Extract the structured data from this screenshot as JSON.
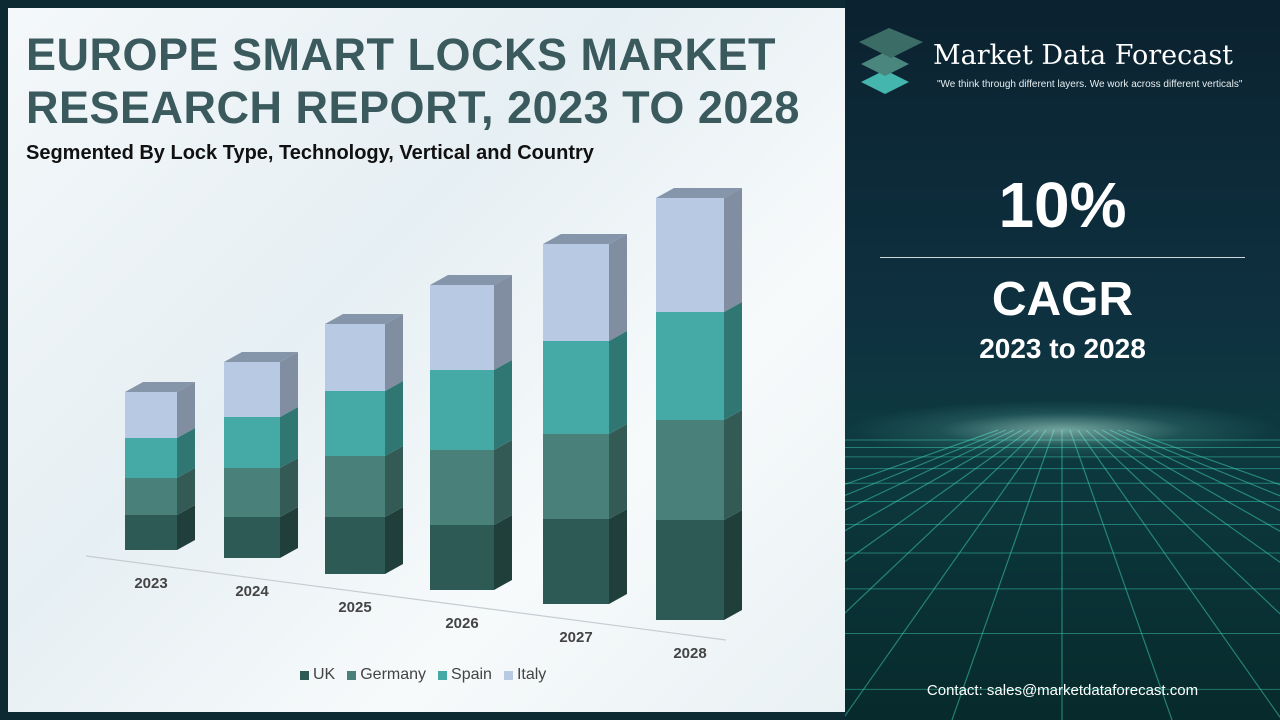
{
  "header": {
    "title_line1": "EUROPE SMART LOCKS MARKET",
    "title_line2": "RESEARCH REPORT, 2023 TO 2028",
    "subtitle": "Segmented By Lock Type, Technology, Vertical and Country"
  },
  "brand": {
    "name": "Market Data Forecast",
    "tagline": "\"We think through different layers. We work across different verticals\""
  },
  "stats": {
    "value": "10%",
    "label": "CAGR",
    "period": "2023 to 2028"
  },
  "contact": "Contact: sales@marketdataforecast.com",
  "colors": {
    "UK": "#2e5a55",
    "Germany": "#4a807a",
    "Spain": "#45aaa6",
    "Italy": "#b8c9e4",
    "panel": "#0e2b36"
  },
  "chart_data": {
    "type": "bar",
    "stacked": true,
    "style": "3d",
    "categories": [
      "2023",
      "2024",
      "2025",
      "2026",
      "2027",
      "2028"
    ],
    "series": [
      {
        "name": "UK",
        "values": [
          35,
          41,
          57,
          65,
          85,
          100
        ]
      },
      {
        "name": "Germany",
        "values": [
          37,
          49,
          61,
          75,
          85,
          100
        ]
      },
      {
        "name": "Spain",
        "values": [
          40,
          51,
          65,
          80,
          93,
          108
        ]
      },
      {
        "name": "Italy",
        "values": [
          46,
          55,
          67,
          85,
          97,
          114
        ]
      }
    ],
    "legend": "bottom",
    "grid": false,
    "yaxis_visible": false
  }
}
